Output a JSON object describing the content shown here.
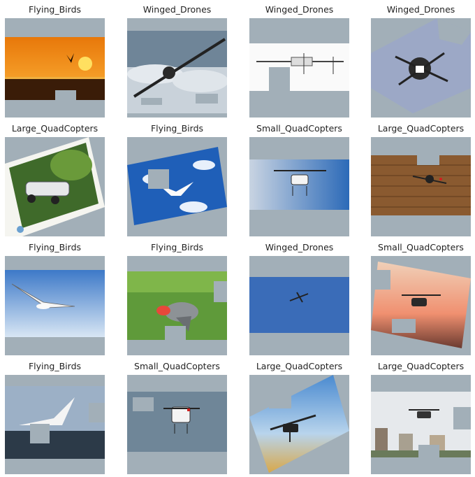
{
  "grid": {
    "panels": [
      {
        "label": "Flying_Birds"
      },
      {
        "label": "Winged_Drones"
      },
      {
        "label": "Winged_Drones"
      },
      {
        "label": "Winged_Drones"
      },
      {
        "label": "Large_QuadCopters"
      },
      {
        "label": "Flying_Birds"
      },
      {
        "label": "Small_QuadCopters"
      },
      {
        "label": "Large_QuadCopters"
      },
      {
        "label": "Flying_Birds"
      },
      {
        "label": "Flying_Birds"
      },
      {
        "label": "Winged_Drones"
      },
      {
        "label": "Small_QuadCopters"
      },
      {
        "label": "Flying_Birds"
      },
      {
        "label": "Small_QuadCopters"
      },
      {
        "label": "Large_QuadCopters"
      },
      {
        "label": "Large_QuadCopters"
      }
    ]
  },
  "colors": {
    "padding": "#a2afb8",
    "text": "#222222"
  }
}
